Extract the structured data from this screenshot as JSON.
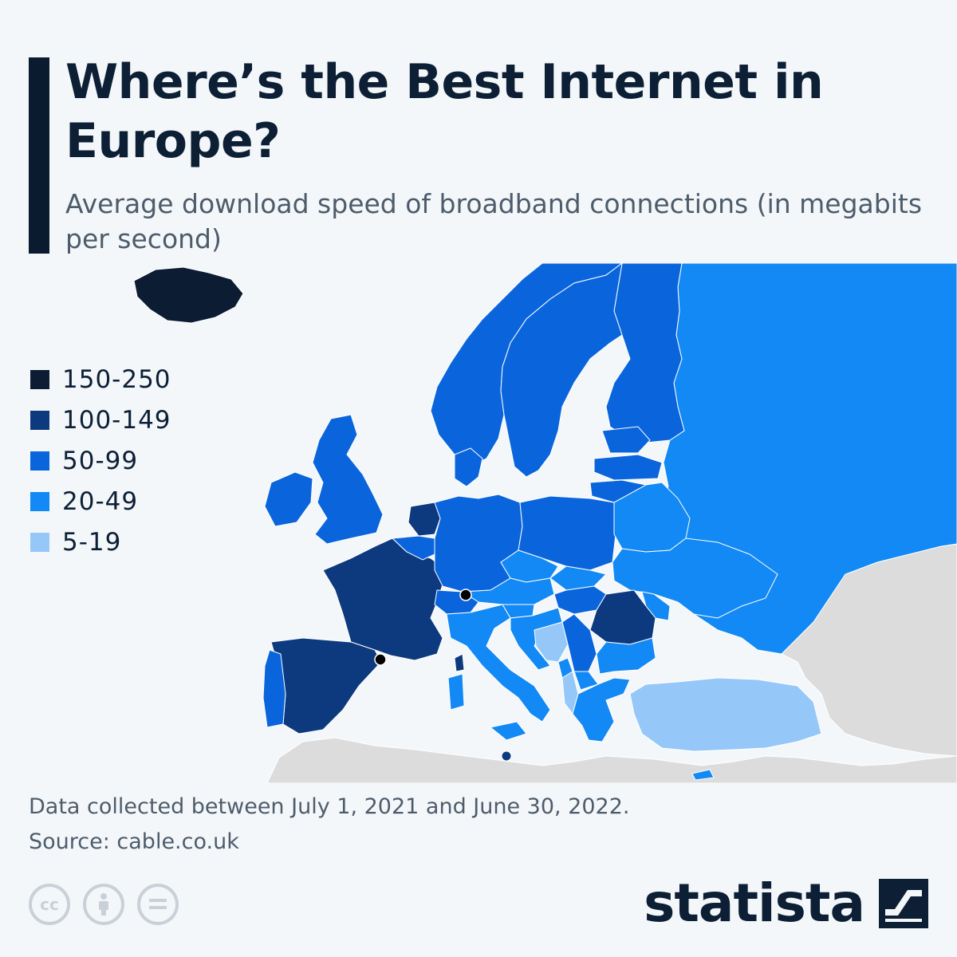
{
  "header": {
    "title": "Where’s the Best Internet in Europe?",
    "subtitle": "Average download speed of broadband connections (in megabits per second)"
  },
  "colors": {
    "background": "#f4f7fa",
    "tier_150_250": "#0b1c33",
    "tier_100_149": "#0d3a7e",
    "tier_50_99": "#0a65dd",
    "tier_20_49": "#1289f4",
    "tier_5_19": "#95c8f8",
    "no_data": "#dcdcdc"
  },
  "legend": {
    "items": [
      {
        "label": "150-250",
        "color": "#0b1c33"
      },
      {
        "label": "100-149",
        "color": "#0d3a7e"
      },
      {
        "label": "50-99",
        "color": "#0a65dd"
      },
      {
        "label": "20-49",
        "color": "#1289f4"
      },
      {
        "label": "5-19",
        "color": "#95c8f8"
      }
    ]
  },
  "map": {
    "regions": [
      {
        "name": "Iceland",
        "tier": "150-250"
      },
      {
        "name": "Monaco",
        "tier": "150-250"
      },
      {
        "name": "Liechtenstein",
        "tier": "150-250"
      },
      {
        "name": "Andorra",
        "tier": "150-250"
      },
      {
        "name": "France",
        "tier": "100-149"
      },
      {
        "name": "Spain",
        "tier": "100-149"
      },
      {
        "name": "Netherlands",
        "tier": "100-149"
      },
      {
        "name": "Romania",
        "tier": "100-149"
      },
      {
        "name": "Malta",
        "tier": "100-149"
      },
      {
        "name": "Norway",
        "tier": "50-99"
      },
      {
        "name": "Sweden",
        "tier": "50-99"
      },
      {
        "name": "Finland",
        "tier": "50-99"
      },
      {
        "name": "United Kingdom",
        "tier": "50-99"
      },
      {
        "name": "Ireland",
        "tier": "50-99"
      },
      {
        "name": "Germany",
        "tier": "50-99"
      },
      {
        "name": "Poland",
        "tier": "50-99"
      },
      {
        "name": "Denmark",
        "tier": "50-99"
      },
      {
        "name": "Portugal",
        "tier": "50-99"
      },
      {
        "name": "Belgium",
        "tier": "50-99"
      },
      {
        "name": "Switzerland",
        "tier": "50-99"
      },
      {
        "name": "Hungary",
        "tier": "50-99"
      },
      {
        "name": "Lithuania",
        "tier": "50-99"
      },
      {
        "name": "Latvia",
        "tier": "50-99"
      },
      {
        "name": "Estonia",
        "tier": "50-99"
      },
      {
        "name": "Serbia",
        "tier": "50-99"
      },
      {
        "name": "Russia",
        "tier": "20-49"
      },
      {
        "name": "Italy",
        "tier": "20-49"
      },
      {
        "name": "Ukraine",
        "tier": "20-49"
      },
      {
        "name": "Belarus",
        "tier": "20-49"
      },
      {
        "name": "Czechia",
        "tier": "20-49"
      },
      {
        "name": "Austria",
        "tier": "20-49"
      },
      {
        "name": "Slovakia",
        "tier": "20-49"
      },
      {
        "name": "Slovenia",
        "tier": "20-49"
      },
      {
        "name": "Croatia",
        "tier": "20-49"
      },
      {
        "name": "Bulgaria",
        "tier": "20-49"
      },
      {
        "name": "Greece",
        "tier": "20-49"
      },
      {
        "name": "Moldova",
        "tier": "20-49"
      },
      {
        "name": "Montenegro",
        "tier": "20-49"
      },
      {
        "name": "North Macedonia",
        "tier": "20-49"
      },
      {
        "name": "Cyprus",
        "tier": "20-49"
      },
      {
        "name": "Turkey",
        "tier": "5-19"
      },
      {
        "name": "Bosnia and Herzegovina",
        "tier": "5-19"
      },
      {
        "name": "Albania",
        "tier": "5-19"
      }
    ]
  },
  "footnote": {
    "date_range": "Data collected between July 1, 2021 and June 30, 2022.",
    "source": "Source: cable.co.uk"
  },
  "license": {
    "cc_label": "cc",
    "icons": [
      "creative-commons-icon",
      "attribution-icon",
      "no-derivatives-icon"
    ]
  },
  "brand": {
    "name": "statista",
    "logo_icon": "statista-logo-icon"
  }
}
